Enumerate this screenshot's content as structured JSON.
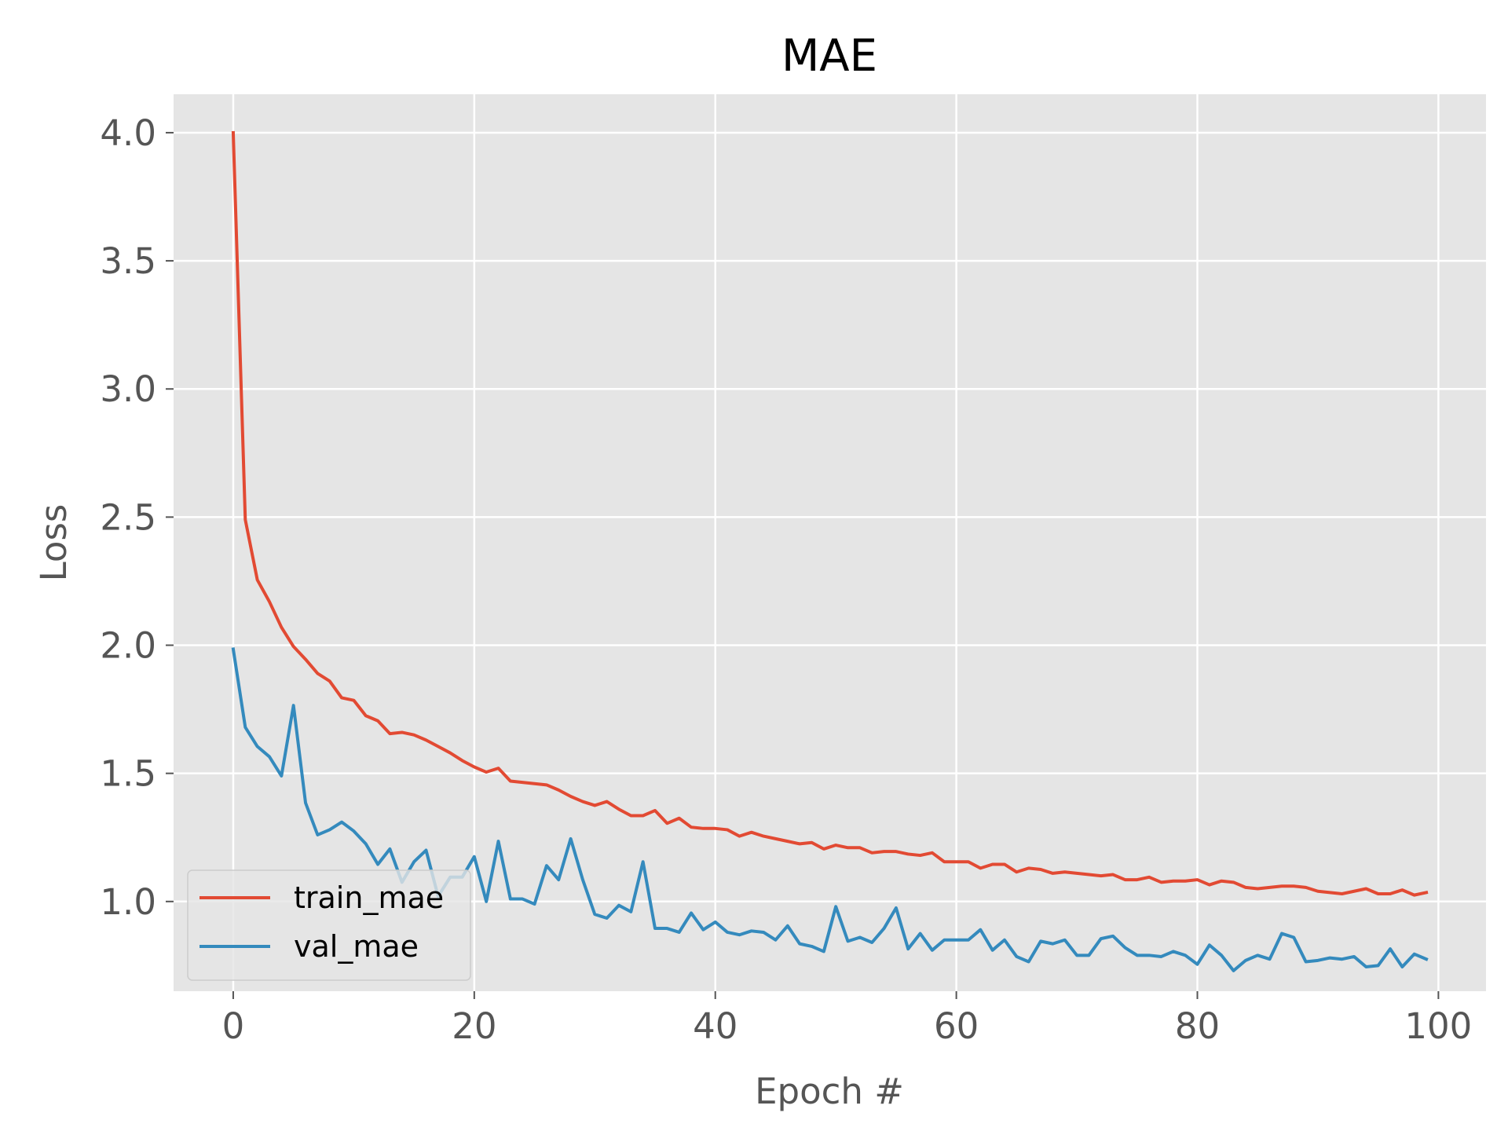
{
  "chart_data": {
    "type": "line",
    "title": "MAE",
    "xlabel": "Epoch #",
    "ylabel": "Loss",
    "xlim": [
      -4.95,
      103.95
    ],
    "ylim": [
      0.65,
      4.15
    ],
    "xticks": [
      0,
      20,
      40,
      60,
      80,
      100
    ],
    "yticks": [
      1.0,
      1.5,
      2.0,
      2.5,
      3.0,
      3.5,
      4.0
    ],
    "xtick_labels": [
      "0",
      "20",
      "40",
      "60",
      "80",
      "100"
    ],
    "ytick_labels": [
      "1.0",
      "1.5",
      "2.0",
      "2.5",
      "3.0",
      "3.5",
      "4.0"
    ],
    "grid": true,
    "legend_position": "lower-left",
    "colors": {
      "plot_background": "#e5e5e5",
      "grid": "#ffffff",
      "train": "#e24a33",
      "val": "#348abd"
    },
    "series": [
      {
        "name": "train_mae",
        "color": "#e24a33",
        "values": [
          4.0,
          2.49,
          2.255,
          2.17,
          2.07,
          1.995,
          1.945,
          1.89,
          1.86,
          1.795,
          1.785,
          1.725,
          1.705,
          1.655,
          1.66,
          1.65,
          1.63,
          1.605,
          1.58,
          1.55,
          1.525,
          1.505,
          1.52,
          1.47,
          1.465,
          1.46,
          1.455,
          1.435,
          1.41,
          1.39,
          1.375,
          1.39,
          1.36,
          1.335,
          1.335,
          1.355,
          1.305,
          1.325,
          1.29,
          1.285,
          1.285,
          1.28,
          1.255,
          1.27,
          1.255,
          1.245,
          1.235,
          1.225,
          1.23,
          1.205,
          1.22,
          1.21,
          1.21,
          1.19,
          1.195,
          1.195,
          1.185,
          1.18,
          1.19,
          1.155,
          1.155,
          1.155,
          1.13,
          1.145,
          1.145,
          1.115,
          1.13,
          1.125,
          1.11,
          1.115,
          1.11,
          1.105,
          1.1,
          1.105,
          1.085,
          1.085,
          1.095,
          1.075,
          1.08,
          1.08,
          1.085,
          1.065,
          1.08,
          1.075,
          1.055,
          1.05,
          1.055,
          1.06,
          1.06,
          1.055,
          1.04,
          1.035,
          1.03,
          1.04,
          1.05,
          1.03,
          1.03,
          1.045,
          1.025,
          1.035
        ]
      },
      {
        "name": "val_mae",
        "color": "#348abd",
        "values": [
          1.985,
          1.68,
          1.605,
          1.565,
          1.49,
          1.765,
          1.385,
          1.26,
          1.28,
          1.31,
          1.275,
          1.225,
          1.145,
          1.205,
          1.075,
          1.155,
          1.2,
          1.02,
          1.095,
          1.095,
          1.175,
          1.0,
          1.235,
          1.01,
          1.01,
          0.99,
          1.14,
          1.085,
          1.245,
          1.085,
          0.95,
          0.935,
          0.985,
          0.96,
          1.155,
          0.895,
          0.895,
          0.88,
          0.955,
          0.89,
          0.92,
          0.88,
          0.87,
          0.885,
          0.88,
          0.85,
          0.905,
          0.835,
          0.825,
          0.805,
          0.98,
          0.845,
          0.86,
          0.84,
          0.895,
          0.975,
          0.815,
          0.875,
          0.81,
          0.85,
          0.85,
          0.85,
          0.89,
          0.81,
          0.85,
          0.785,
          0.765,
          0.845,
          0.835,
          0.85,
          0.79,
          0.79,
          0.855,
          0.865,
          0.82,
          0.79,
          0.79,
          0.785,
          0.805,
          0.79,
          0.755,
          0.83,
          0.79,
          0.73,
          0.77,
          0.79,
          0.775,
          0.875,
          0.86,
          0.765,
          0.77,
          0.78,
          0.775,
          0.785,
          0.745,
          0.75,
          0.815,
          0.745,
          0.795,
          0.775
        ]
      }
    ]
  }
}
